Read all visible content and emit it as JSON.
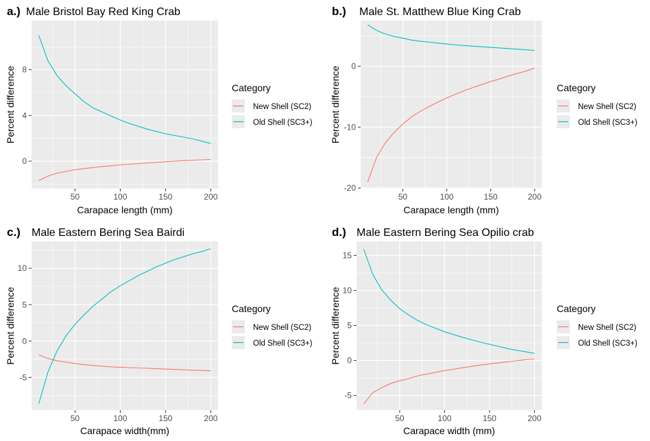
{
  "colors": {
    "new_shell": "#F8766D",
    "old_shell": "#00BFC4",
    "panel_bg": "#EBEBEB",
    "grid": "#FFFFFF",
    "tick_text": "#4D4D4D"
  },
  "chart_data": [
    {
      "type": "line",
      "tag": "a.)",
      "title": "Male Bristol Bay Red King Crab",
      "xlabel": "Carapace length (mm)",
      "ylabel": "Percent difference",
      "xlim": [
        2,
        208
      ],
      "ylim": [
        -2.4,
        12.3
      ],
      "xticks": [
        50,
        100,
        150,
        200
      ],
      "yticks": [
        0,
        4,
        8
      ],
      "grid": true,
      "legend": {
        "title": "Category",
        "position": "right",
        "entries": [
          "New Shell (SC2)",
          "Old Shell (SC3+)"
        ]
      },
      "series": [
        {
          "name": "New Shell (SC2)",
          "x": [
            10,
            20,
            30,
            40,
            50,
            60,
            70,
            80,
            90,
            100,
            110,
            120,
            130,
            140,
            150,
            160,
            170,
            180,
            190,
            200
          ],
          "y": [
            -1.7,
            -1.3,
            -1.05,
            -0.9,
            -0.75,
            -0.65,
            -0.55,
            -0.47,
            -0.4,
            -0.33,
            -0.27,
            -0.21,
            -0.15,
            -0.1,
            -0.05,
            0.0,
            0.05,
            0.08,
            0.12,
            0.15
          ]
        },
        {
          "name": "Old Shell (SC3+)",
          "x": [
            10,
            20,
            30,
            40,
            50,
            60,
            70,
            80,
            90,
            100,
            110,
            120,
            130,
            140,
            150,
            160,
            170,
            180,
            190,
            200
          ],
          "y": [
            11.0,
            8.8,
            7.5,
            6.6,
            5.9,
            5.2,
            4.65,
            4.3,
            3.95,
            3.6,
            3.3,
            3.05,
            2.8,
            2.6,
            2.4,
            2.25,
            2.1,
            1.95,
            1.75,
            1.55
          ]
        }
      ]
    },
    {
      "type": "line",
      "tag": "b.)",
      "title": "Male St. Matthew Blue King Crab",
      "xlabel": "Carapace length (mm)",
      "ylabel": "Percent difference",
      "xlim": [
        2,
        208
      ],
      "ylim": [
        -20.1,
        7.5
      ],
      "xticks": [
        50,
        100,
        150,
        200
      ],
      "yticks": [
        -20,
        -10,
        0
      ],
      "grid": true,
      "legend": {
        "title": "Category",
        "position": "right",
        "entries": [
          "New Shell (SC2)",
          "Old Shell (SC3+)"
        ]
      },
      "series": [
        {
          "name": "New Shell (SC2)",
          "x": [
            10,
            20,
            30,
            40,
            50,
            60,
            70,
            80,
            90,
            100,
            110,
            120,
            130,
            140,
            150,
            160,
            170,
            180,
            190,
            200
          ],
          "y": [
            -19.0,
            -15.0,
            -12.6,
            -10.9,
            -9.5,
            -8.3,
            -7.4,
            -6.6,
            -5.9,
            -5.2,
            -4.6,
            -4.0,
            -3.5,
            -3.0,
            -2.5,
            -2.1,
            -1.6,
            -1.2,
            -0.8,
            -0.3
          ]
        },
        {
          "name": "Old Shell (SC3+)",
          "x": [
            10,
            20,
            30,
            40,
            50,
            60,
            70,
            80,
            90,
            100,
            110,
            120,
            130,
            140,
            150,
            160,
            170,
            180,
            190,
            200
          ],
          "y": [
            6.8,
            5.9,
            5.3,
            4.9,
            4.6,
            4.3,
            4.1,
            3.95,
            3.8,
            3.65,
            3.5,
            3.4,
            3.3,
            3.2,
            3.1,
            3.0,
            2.9,
            2.8,
            2.7,
            2.6
          ]
        }
      ]
    },
    {
      "type": "line",
      "tag": "c.)",
      "title": "Male Eastern Bering Sea Bairdi",
      "xlabel": "Carapace width(mm)",
      "ylabel": "Percent difference",
      "xlim": [
        2,
        208
      ],
      "ylim": [
        -9.5,
        13.7
      ],
      "xticks": [
        50,
        100,
        150,
        200
      ],
      "yticks": [
        -5,
        0,
        5,
        10
      ],
      "grid": true,
      "legend": {
        "title": "Category",
        "position": "right",
        "entries": [
          "New Shell (SC2)",
          "Old Shell (SC3+)"
        ]
      },
      "series": [
        {
          "name": "New Shell (SC2)",
          "x": [
            10,
            20,
            30,
            40,
            50,
            60,
            70,
            80,
            90,
            100,
            110,
            120,
            130,
            140,
            150,
            160,
            170,
            180,
            190,
            200
          ],
          "y": [
            -1.9,
            -2.4,
            -2.7,
            -2.9,
            -3.1,
            -3.25,
            -3.35,
            -3.45,
            -3.55,
            -3.6,
            -3.65,
            -3.7,
            -3.75,
            -3.8,
            -3.85,
            -3.9,
            -3.95,
            -4.0,
            -4.05,
            -4.1
          ]
        },
        {
          "name": "Old Shell (SC3+)",
          "x": [
            10,
            20,
            30,
            40,
            50,
            60,
            70,
            80,
            90,
            100,
            110,
            120,
            130,
            140,
            150,
            160,
            170,
            180,
            190,
            200
          ],
          "y": [
            -8.6,
            -4.3,
            -1.4,
            0.7,
            2.3,
            3.6,
            4.8,
            5.8,
            6.8,
            7.6,
            8.3,
            9.0,
            9.6,
            10.2,
            10.7,
            11.2,
            11.6,
            12.0,
            12.3,
            12.7
          ]
        }
      ]
    },
    {
      "type": "line",
      "tag": "d.)",
      "title": "Male Eastern Bering Sea Opilio crab",
      "xlabel": "Carapace width (mm)",
      "ylabel": "Percent difference",
      "xlim": [
        2,
        208
      ],
      "ylim": [
        -7.1,
        17.0
      ],
      "xticks": [
        50,
        100,
        150,
        200
      ],
      "yticks": [
        -5,
        0,
        5,
        10,
        15
      ],
      "grid": true,
      "legend": {
        "title": "Category",
        "position": "right",
        "entries": [
          "New Shell (SC2)",
          "Old Shell (SC3+)"
        ]
      },
      "series": [
        {
          "name": "New Shell (SC2)",
          "x": [
            10,
            20,
            30,
            40,
            50,
            60,
            70,
            80,
            90,
            100,
            110,
            120,
            130,
            140,
            150,
            160,
            170,
            180,
            190,
            200
          ],
          "y": [
            -6.2,
            -4.6,
            -3.9,
            -3.3,
            -2.9,
            -2.6,
            -2.2,
            -1.95,
            -1.7,
            -1.45,
            -1.25,
            -1.05,
            -0.85,
            -0.65,
            -0.5,
            -0.35,
            -0.2,
            -0.05,
            0.1,
            0.2
          ]
        },
        {
          "name": "Old Shell (SC3+)",
          "x": [
            10,
            20,
            30,
            40,
            50,
            60,
            70,
            80,
            90,
            100,
            110,
            120,
            130,
            140,
            150,
            160,
            170,
            180,
            190,
            200
          ],
          "y": [
            15.9,
            12.3,
            10.1,
            8.6,
            7.4,
            6.5,
            5.7,
            5.1,
            4.6,
            4.1,
            3.7,
            3.3,
            2.95,
            2.6,
            2.3,
            2.0,
            1.7,
            1.45,
            1.25,
            1.0
          ]
        }
      ]
    }
  ]
}
